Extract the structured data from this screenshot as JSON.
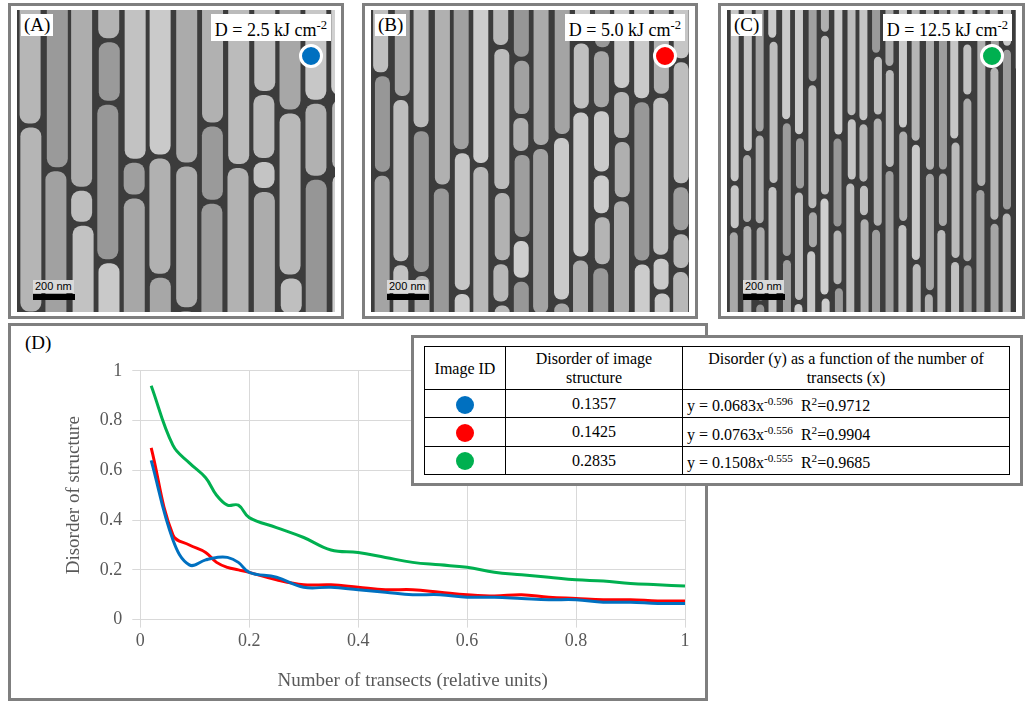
{
  "panels": [
    {
      "label": "(A)",
      "dose": [
        {
          "text": "D = 2.5 kJ cm"
        },
        {
          "sup": "-2"
        }
      ],
      "scale_bar": "200 nm",
      "color": "#0070c0"
    },
    {
      "label": "(B)",
      "dose": [
        {
          "text": "D = 5.0 kJ cm"
        },
        {
          "sup": "-2"
        }
      ],
      "scale_bar": "200 nm",
      "color": "#ff0000"
    },
    {
      "label": "(C)",
      "dose": [
        {
          "text": "D = 12.5 kJ cm"
        },
        {
          "sup": "-2"
        }
      ],
      "scale_bar": "200 nm",
      "color": "#00b050"
    }
  ],
  "chart_panel": {
    "label": "(D)"
  },
  "chart_data": {
    "type": "line",
    "x_label": "Number of transects (relative units)",
    "y_label": "Disorder of structure",
    "x": [
      0.02,
      0.06,
      0.09,
      0.12,
      0.14,
      0.16,
      0.18,
      0.2,
      0.25,
      0.3,
      0.35,
      0.4,
      0.45,
      0.5,
      0.55,
      0.6,
      0.65,
      0.7,
      0.75,
      0.8,
      0.85,
      0.9,
      0.95,
      1
    ],
    "series": [
      {
        "color": "#0070c0",
        "values": [
          0.64,
          0.32,
          0.22,
          0.24,
          0.25,
          0.25,
          0.23,
          0.19,
          0.17,
          0.13,
          0.13,
          0.12,
          0.11,
          0.1,
          0.1,
          0.09,
          0.09,
          0.085,
          0.08,
          0.08,
          0.07,
          0.07,
          0.065,
          0.065
        ]
      },
      {
        "color": "#ff0000",
        "values": [
          0.69,
          0.34,
          0.3,
          0.27,
          0.23,
          0.21,
          0.2,
          0.19,
          0.16,
          0.14,
          0.14,
          0.13,
          0.12,
          0.12,
          0.11,
          0.1,
          0.095,
          0.1,
          0.09,
          0.085,
          0.08,
          0.08,
          0.075,
          0.075
        ]
      },
      {
        "color": "#00b050",
        "values": [
          0.94,
          0.7,
          0.63,
          0.57,
          0.5,
          0.46,
          0.46,
          0.41,
          0.37,
          0.33,
          0.28,
          0.27,
          0.25,
          0.23,
          0.22,
          0.21,
          0.19,
          0.18,
          0.17,
          0.16,
          0.155,
          0.145,
          0.14,
          0.135
        ]
      }
    ],
    "xlim": [
      0,
      1
    ],
    "xticks": [
      0,
      0.2,
      0.4,
      0.6,
      0.8,
      1
    ],
    "ylim": [
      0,
      1
    ],
    "yticks": [
      0,
      0.2,
      0.4,
      0.6,
      0.8,
      1
    ],
    "grid": true
  },
  "table": {
    "header": [
      "Image ID",
      "Disorder of image structure",
      "Disorder (y) as a function of the number of transects (x)"
    ],
    "rows": [
      {
        "color": "#0070c0",
        "disorder": 0.1357,
        "equation": [
          {
            "text": "y = 0.0683x"
          },
          {
            "sup": "-0.596"
          },
          {
            "text": "  R"
          },
          {
            "sup": "2"
          },
          {
            "text": "=0.9712"
          }
        ]
      },
      {
        "color": "#ff0000",
        "disorder": 0.1425,
        "equation": [
          {
            "text": "y = 0.0763x"
          },
          {
            "sup": "-0.556"
          },
          {
            "text": "  R"
          },
          {
            "sup": "2"
          },
          {
            "text": "=0.9904"
          }
        ]
      },
      {
        "color": "#00b050",
        "disorder": 0.2835,
        "equation": [
          {
            "text": "y = 0.1508x"
          },
          {
            "sup": "-0.555"
          },
          {
            "text": "  R"
          },
          {
            "sup": "2"
          },
          {
            "text": "=0.9685"
          }
        ]
      }
    ]
  }
}
